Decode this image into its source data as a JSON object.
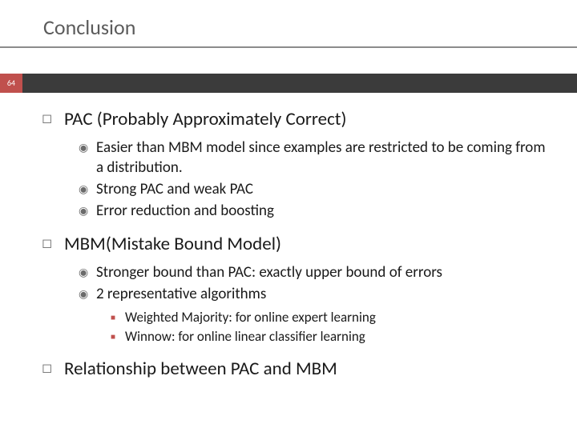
{
  "slide": {
    "title": "Conclusion",
    "pageNumber": "64",
    "colors": {
      "accent": "#c0504d",
      "bar": "#3b3b3b",
      "titleText": "#5b5b5b",
      "underline": "#8b8b8b",
      "bulletGray": "#6b6b6b",
      "bodyText": "#1a1a1a",
      "background": "#ffffff"
    },
    "fontSizes": {
      "title": 26,
      "level1": 23,
      "level2": 19,
      "level3": 17
    }
  },
  "items": [
    {
      "text": "PAC (Probably Approximately Correct)",
      "children": [
        {
          "text": "Easier than MBM model since examples are restricted to be coming from a distribution."
        },
        {
          "text": "Strong PAC and weak PAC"
        },
        {
          "text": "Error reduction and boosting"
        }
      ]
    },
    {
      "text": "MBM(Mistake Bound Model)",
      "children": [
        {
          "text": "Stronger bound than PAC: exactly upper bound of errors"
        },
        {
          "text": "2 representative algorithms",
          "children": [
            {
              "text": "Weighted Majority: for online expert learning"
            },
            {
              "text": "Winnow: for online linear classifier learning"
            }
          ]
        }
      ]
    },
    {
      "text": "Relationship between PAC and MBM"
    }
  ]
}
